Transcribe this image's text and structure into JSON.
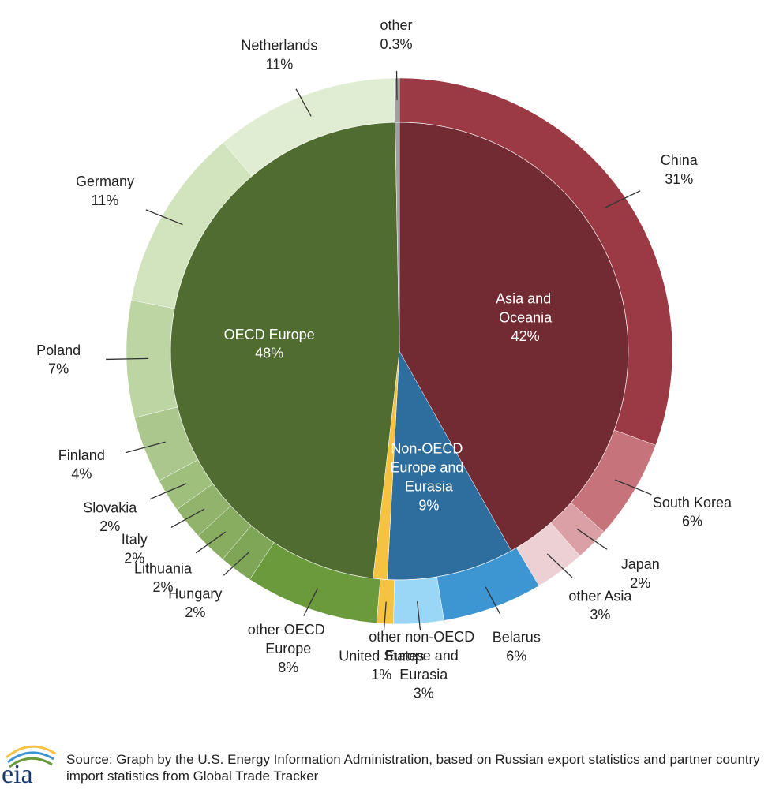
{
  "chart_data": {
    "type": "sunburst",
    "groups": [
      {
        "name": "Asia and Oceania",
        "value": 42,
        "value_label": "42%",
        "color": "#722a33",
        "children": [
          {
            "name": "China",
            "value": 31,
            "value_label": "31%",
            "color": "#9b3a44"
          },
          {
            "name": "South Korea",
            "value": 6,
            "value_label": "6%",
            "color": "#c7737b"
          },
          {
            "name": "Japan",
            "value": 2,
            "value_label": "2%",
            "color": "#dba0a5"
          },
          {
            "name": "other Asia",
            "value": 3,
            "value_label": "3%",
            "color": "#ecd0d3"
          }
        ]
      },
      {
        "name": "Non-OECD Europe and Eurasia",
        "value": 9,
        "value_label": "9%",
        "color": "#2e6e9e",
        "children": [
          {
            "name": "Belarus",
            "value": 6,
            "value_label": "6%",
            "color": "#3d95d2"
          },
          {
            "name": "other non-OECD Europe and Eurasia",
            "value": 3,
            "value_label": "3%",
            "color": "#9ad6f5"
          }
        ]
      },
      {
        "name": "United States",
        "value": 1,
        "value_label": "1%",
        "color": "#f5c242"
      },
      {
        "name": "OECD Europe",
        "value": 48,
        "value_label": "48%",
        "color": "#506c30",
        "children": [
          {
            "name": "other OECD Europe",
            "value": 8,
            "value_label": "8%",
            "color": "#6b9a3c"
          },
          {
            "name": "Hungary",
            "value": 2,
            "value_label": "2%",
            "color": "#7fa656"
          },
          {
            "name": "Lithuania",
            "value": 2,
            "value_label": "2%",
            "color": "#88ac60"
          },
          {
            "name": "Italy",
            "value": 2,
            "value_label": "2%",
            "color": "#91b36b"
          },
          {
            "name": "Slovakia",
            "value": 2,
            "value_label": "2%",
            "color": "#9fbf7c"
          },
          {
            "name": "Finland",
            "value": 4,
            "value_label": "4%",
            "color": "#abc78d"
          },
          {
            "name": "Poland",
            "value": 7,
            "value_label": "7%",
            "color": "#bcd5a2"
          },
          {
            "name": "Germany",
            "value": 11,
            "value_label": "11%",
            "color": "#d2e4be"
          },
          {
            "name": "Netherlands",
            "value": 11,
            "value_label": "11%",
            "color": "#e1edd2"
          }
        ]
      },
      {
        "name": "other",
        "value": 0.3,
        "value_label": "0.3%",
        "color": "#a0a0a0"
      }
    ],
    "logo": "eia",
    "source": "Source: Graph by the U.S. Energy Information Administration, based on Russian export statistics and partner country import statistics from Global Trade Tracker"
  }
}
